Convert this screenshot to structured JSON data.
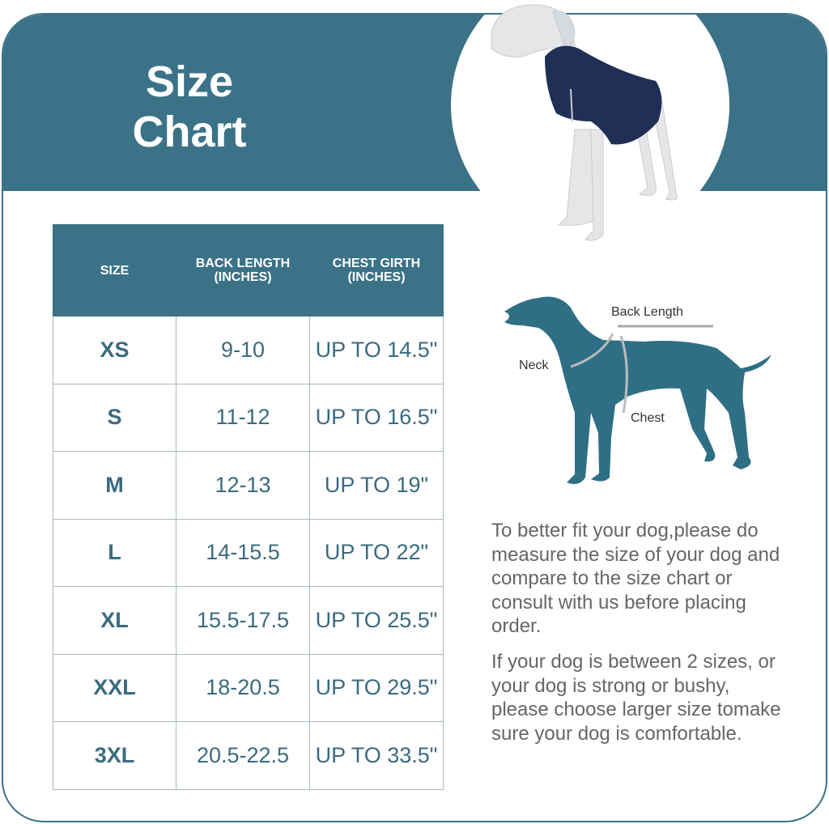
{
  "header": {
    "title_line1": "Size",
    "title_line2": "Chart"
  },
  "colors": {
    "accent": "#3b7288",
    "table_text": "#3a6b80",
    "vest": "#1f2f55"
  },
  "table": {
    "headers": [
      {
        "line1": "SIZE",
        "line2": ""
      },
      {
        "line1": "BACK LENGTH",
        "line2": "(INCHES)"
      },
      {
        "line1": "CHEST GIRTH",
        "line2": "(INCHES)"
      }
    ],
    "rows": [
      [
        "XS",
        "9-10",
        "UP TO 14.5\""
      ],
      [
        "S",
        "11-12",
        "UP TO 16.5\""
      ],
      [
        "M",
        "12-13",
        "UP TO 19\""
      ],
      [
        "L",
        "14-15.5",
        "UP TO 22\""
      ],
      [
        "XL",
        "15.5-17.5",
        "UP TO 25.5\""
      ],
      [
        "XXL",
        "18-20.5",
        "UP TO 29.5\""
      ],
      [
        "3XL",
        "20.5-22.5",
        "UP TO 33.5\""
      ]
    ]
  },
  "diagram": {
    "back_length": "Back Length",
    "neck": "Neck",
    "chest": "Chest"
  },
  "notes": {
    "paragraph1": "To better fit your dog,please do measure the size of your dog and compare to the size chart or consult with us before placing order.",
    "paragraph2": "If your dog is between 2 sizes, or your dog is strong or bushy, please choose larger size tomake sure your dog is comfortable."
  }
}
